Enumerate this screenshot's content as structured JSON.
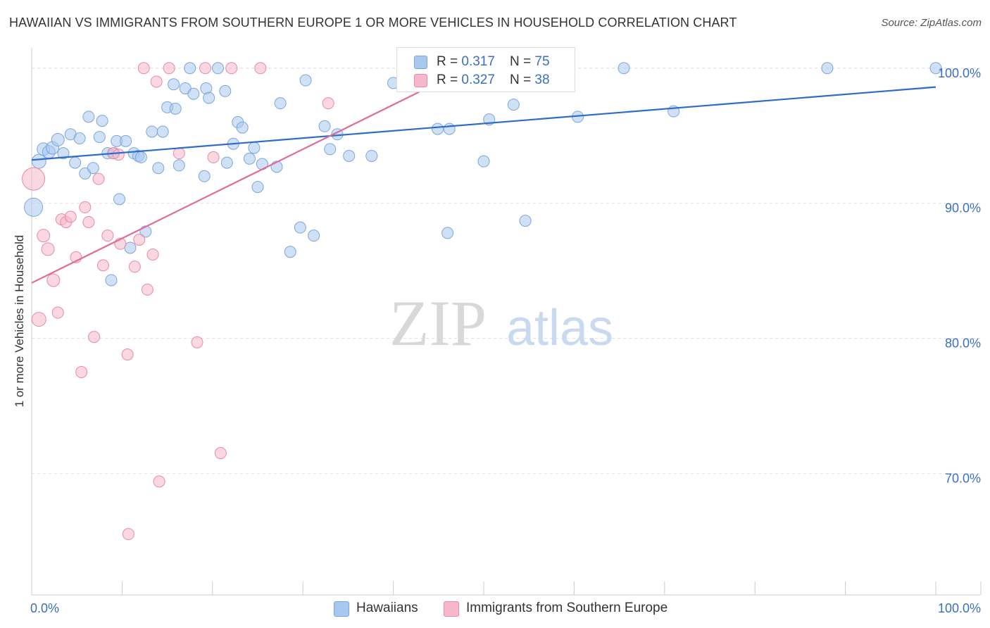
{
  "title": "HAWAIIAN VS IMMIGRANTS FROM SOUTHERN EUROPE 1 OR MORE VEHICLES IN HOUSEHOLD CORRELATION CHART",
  "source": "Source: ZipAtlas.com",
  "watermark": {
    "zip": "ZIP",
    "atlas": "atlas"
  },
  "legend": {
    "series1": {
      "r_label": "R = ",
      "r_value": "0.317",
      "n_label": "N = ",
      "n_value": "75"
    },
    "series2": {
      "r_label": "R = ",
      "r_value": "0.327",
      "n_label": "N = ",
      "n_value": "38"
    }
  },
  "chart_data": {
    "type": "scatter",
    "ylabel": "1 or more Vehicles in Household",
    "xlim": [
      0,
      100
    ],
    "ylim": [
      61,
      101.5
    ],
    "x_tick_labels": [
      "0.0%",
      "100.0%"
    ],
    "y_ticks": [
      70,
      80,
      90,
      100
    ],
    "y_tick_labels": [
      "70.0%",
      "80.0%",
      "90.0%",
      "100.0%"
    ],
    "grid": true,
    "legend_position": "top-center",
    "series": [
      {
        "name": "Hawaiians",
        "color": "#a9c8ee",
        "edge": "#7aa6dd",
        "line_color": "#2f6cc6",
        "trend": [
          [
            0,
            93.2
          ],
          [
            100,
            98.6
          ]
        ],
        "points": [
          [
            0.2,
            89.7,
            13
          ],
          [
            0.8,
            93.1,
            10
          ],
          [
            1.3,
            94.0,
            9
          ],
          [
            1.9,
            93.8,
            9
          ],
          [
            2.3,
            94.1,
            9
          ],
          [
            2.9,
            94.7,
            9
          ],
          [
            3.5,
            93.7,
            8
          ],
          [
            4.3,
            95.1,
            8
          ],
          [
            4.8,
            93.0,
            8
          ],
          [
            5.3,
            94.8,
            8
          ],
          [
            5.9,
            92.2,
            8
          ],
          [
            6.3,
            96.4,
            8
          ],
          [
            6.8,
            92.6,
            8
          ],
          [
            7.5,
            94.9,
            8
          ],
          [
            7.8,
            96.1,
            8
          ],
          [
            8.4,
            93.7,
            8
          ],
          [
            8.8,
            84.3,
            8
          ],
          [
            9.4,
            94.6,
            8
          ],
          [
            9.7,
            90.3,
            8
          ],
          [
            10.4,
            94.6,
            8
          ],
          [
            10.9,
            86.7,
            8
          ],
          [
            11.3,
            93.7,
            8
          ],
          [
            11.8,
            93.5,
            8
          ],
          [
            12.1,
            93.4,
            8
          ],
          [
            12.6,
            87.9,
            8
          ],
          [
            13.3,
            95.3,
            8
          ],
          [
            14.0,
            92.6,
            8
          ],
          [
            14.5,
            95.3,
            8
          ],
          [
            15.0,
            97.1,
            8
          ],
          [
            15.9,
            97.0,
            8
          ],
          [
            15.7,
            98.8,
            8
          ],
          [
            16.3,
            92.8,
            8
          ],
          [
            17.0,
            98.5,
            8
          ],
          [
            17.5,
            100.0,
            8
          ],
          [
            17.9,
            98.1,
            8
          ],
          [
            19.1,
            92.0,
            8
          ],
          [
            19.3,
            98.5,
            8
          ],
          [
            19.6,
            97.8,
            8
          ],
          [
            20.6,
            100.0,
            8
          ],
          [
            21.4,
            98.3,
            8
          ],
          [
            21.6,
            93.0,
            8
          ],
          [
            22.3,
            94.4,
            8
          ],
          [
            22.8,
            96.0,
            8
          ],
          [
            23.3,
            95.6,
            8
          ],
          [
            24.1,
            93.3,
            8
          ],
          [
            24.6,
            94.1,
            8
          ],
          [
            25.0,
            91.2,
            8
          ],
          [
            25.5,
            92.9,
            8
          ],
          [
            27.1,
            92.7,
            8
          ],
          [
            27.5,
            97.4,
            8
          ],
          [
            28.6,
            86.4,
            8
          ],
          [
            29.7,
            88.2,
            8
          ],
          [
            30.3,
            99.1,
            8
          ],
          [
            31.2,
            87.6,
            8
          ],
          [
            32.4,
            95.7,
            8
          ],
          [
            33.0,
            94.0,
            8
          ],
          [
            33.8,
            95.1,
            8
          ],
          [
            35.1,
            93.5,
            8
          ],
          [
            37.6,
            93.5,
            8
          ],
          [
            40.0,
            98.9,
            8
          ],
          [
            44.9,
            95.5,
            8
          ],
          [
            46.0,
            87.8,
            8
          ],
          [
            46.2,
            95.5,
            8
          ],
          [
            48.3,
            100.0,
            8
          ],
          [
            50.0,
            93.1,
            8
          ],
          [
            50.6,
            96.2,
            8
          ],
          [
            54.6,
            88.7,
            8
          ],
          [
            56.0,
            99.6,
            8
          ],
          [
            60.4,
            96.4,
            8
          ],
          [
            65.5,
            100.0,
            8
          ],
          [
            71.0,
            96.8,
            8
          ],
          [
            88.0,
            100.0,
            8
          ],
          [
            100.0,
            100.0,
            8
          ],
          [
            53.3,
            97.3,
            8
          ],
          [
            9.1,
            93.7,
            8
          ]
        ]
      },
      {
        "name": "Immigrants from Southern Europe",
        "color": "#f5b8cb",
        "edge": "#e88aa8",
        "line_color": "#e06b97",
        "trend": [
          [
            0,
            84.1
          ],
          [
            48.2,
            100.0
          ]
        ],
        "points": [
          [
            0.2,
            91.8,
            16
          ],
          [
            0.8,
            81.4,
            10
          ],
          [
            1.3,
            87.6,
            9
          ],
          [
            1.8,
            86.6,
            9
          ],
          [
            2.4,
            84.3,
            9
          ],
          [
            2.9,
            81.9,
            8
          ],
          [
            3.3,
            88.8,
            8
          ],
          [
            3.8,
            88.6,
            8
          ],
          [
            4.3,
            89.0,
            8
          ],
          [
            4.9,
            86.0,
            8
          ],
          [
            5.5,
            77.5,
            8
          ],
          [
            5.9,
            89.7,
            8
          ],
          [
            6.3,
            88.6,
            8
          ],
          [
            6.9,
            80.1,
            8
          ],
          [
            7.4,
            91.8,
            8
          ],
          [
            7.9,
            85.4,
            8
          ],
          [
            8.4,
            87.6,
            8
          ],
          [
            9.0,
            93.7,
            8
          ],
          [
            9.6,
            93.6,
            8
          ],
          [
            9.8,
            87.0,
            8
          ],
          [
            10.6,
            78.8,
            8
          ],
          [
            10.7,
            65.5,
            8
          ],
          [
            11.4,
            85.3,
            8
          ],
          [
            11.9,
            87.3,
            8
          ],
          [
            12.4,
            100.0,
            8
          ],
          [
            12.8,
            83.6,
            8
          ],
          [
            13.4,
            86.2,
            8
          ],
          [
            13.8,
            99.0,
            8
          ],
          [
            14.1,
            69.4,
            8
          ],
          [
            15.2,
            100.0,
            8
          ],
          [
            16.3,
            93.7,
            8
          ],
          [
            18.3,
            79.7,
            8
          ],
          [
            19.2,
            100.0,
            8
          ],
          [
            20.1,
            93.4,
            8
          ],
          [
            20.9,
            71.5,
            8
          ],
          [
            22.1,
            100.0,
            8
          ],
          [
            25.3,
            100.0,
            8
          ],
          [
            32.8,
            97.4,
            8
          ]
        ]
      }
    ]
  },
  "bottom_legend": [
    "Hawaiians",
    "Immigrants from Southern Europe"
  ]
}
